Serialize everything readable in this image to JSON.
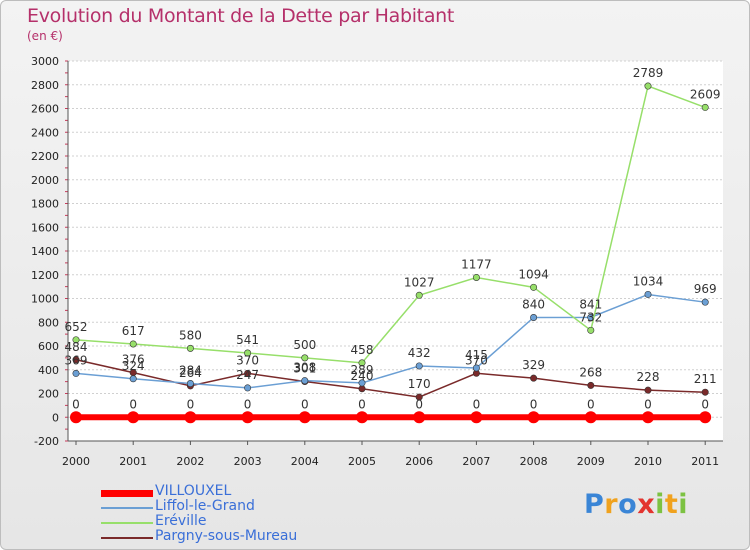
{
  "title": "Evolution du Montant de la Dette par Habitant",
  "subtitle": "(en €)",
  "logo": {
    "text": "Proxiti",
    "letters": [
      {
        "ch": "P",
        "color": "#3a85d6"
      },
      {
        "ch": "r",
        "color": "#f0a21e"
      },
      {
        "ch": "o",
        "color": "#3a85d6"
      },
      {
        "ch": "x",
        "color": "#e3342f"
      },
      {
        "ch": "i",
        "color": "#7cc242"
      },
      {
        "ch": "t",
        "color": "#f0a21e"
      },
      {
        "ch": "i",
        "color": "#7cc242"
      }
    ]
  },
  "chart_data": {
    "type": "line",
    "title": "Evolution du Montant de la Dette par Habitant",
    "subtitle": "(en €)",
    "xlabel": "",
    "ylabel": "",
    "x": [
      "2000",
      "2001",
      "2002",
      "2003",
      "2004",
      "2005",
      "2006",
      "2007",
      "2008",
      "2009",
      "2010",
      "2011"
    ],
    "ylim": [
      -200,
      3000
    ],
    "yticks": [
      -200,
      0,
      200,
      400,
      600,
      800,
      1000,
      1200,
      1400,
      1600,
      1800,
      2000,
      2200,
      2400,
      2600,
      2800,
      3000
    ],
    "grid": "horizontal",
    "legend": "bottom-left",
    "series": [
      {
        "name": "VILLOUXEL",
        "color": "#ff0000",
        "values": [
          0,
          0,
          0,
          0,
          0,
          0,
          0,
          0,
          0,
          0,
          0,
          0
        ],
        "labels": [
          "0",
          "0",
          "0",
          "0",
          "0",
          "0",
          "0",
          "0",
          "0",
          "0",
          "0",
          "0"
        ]
      },
      {
        "name": "Liffol-le-Grand",
        "color": "#6b9fd4",
        "values": [
          369,
          324,
          284,
          247,
          308,
          289,
          432,
          415,
          840,
          841,
          1034,
          969
        ],
        "labels": [
          "369",
          "324",
          "284",
          "247",
          "308",
          "289",
          "432",
          "415",
          "840",
          "841",
          "1034",
          "969"
        ]
      },
      {
        "name": "Eréville",
        "color": "#97df6a",
        "values": [
          652,
          617,
          580,
          541,
          500,
          458,
          1027,
          1177,
          1094,
          732,
          2789,
          2609
        ],
        "labels": [
          "652",
          "617",
          "580",
          "541",
          "500",
          "458",
          "1027",
          "1177",
          "1094",
          "732",
          "2789",
          "2609"
        ]
      },
      {
        "name": "Pargny-sous-Mureau",
        "color": "#7a2a2a",
        "values": [
          484,
          376,
          264,
          370,
          301,
          240,
          170,
          370,
          329,
          268,
          228,
          211
        ],
        "labels": [
          "484",
          "376",
          "264",
          "370",
          "301",
          "240",
          "170",
          "370",
          "329",
          "268",
          "228",
          "211"
        ]
      }
    ]
  }
}
